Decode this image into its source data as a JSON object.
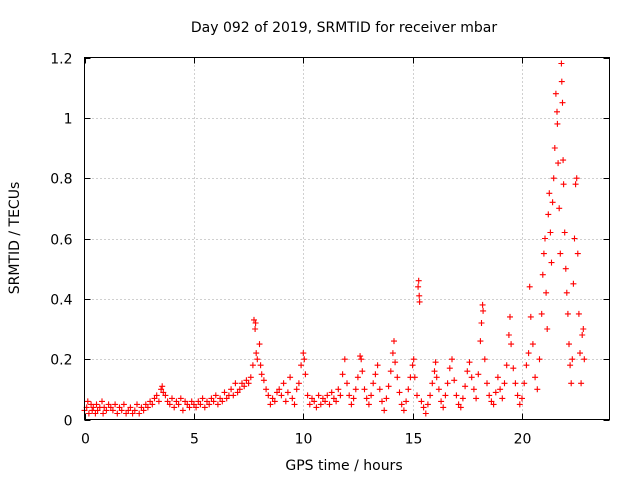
{
  "chart_data": {
    "type": "scatter",
    "title": "Day 092 of 2019, SRMTID for receiver mbar",
    "xlabel": "GPS time / hours",
    "ylabel": "SRMTID / TECUs",
    "xlim": [
      0,
      24
    ],
    "ylim": [
      0,
      1.2
    ],
    "x_ticks": [
      0,
      5,
      10,
      15,
      20
    ],
    "x_tick_labels": [
      "0",
      "5",
      "10",
      "15",
      "20"
    ],
    "y_ticks": [
      0,
      0.2,
      0.4,
      0.6,
      0.8,
      1.0,
      1.2
    ],
    "y_tick_labels": [
      "0",
      "0.2",
      "0.4",
      "0.6",
      "0.8",
      "1",
      "1.2"
    ],
    "grid": true,
    "marker": "plus",
    "series": [
      {
        "name": "SRMTID",
        "color": "#ff0000",
        "points": [
          [
            0.0,
            0.03
          ],
          [
            0.1,
            0.04
          ],
          [
            0.15,
            0.06
          ],
          [
            0.2,
            0.02
          ],
          [
            0.3,
            0.05
          ],
          [
            0.35,
            0.03
          ],
          [
            0.4,
            0.04
          ],
          [
            0.5,
            0.02
          ],
          [
            0.55,
            0.05
          ],
          [
            0.6,
            0.03
          ],
          [
            0.7,
            0.04
          ],
          [
            0.8,
            0.06
          ],
          [
            0.85,
            0.02
          ],
          [
            0.9,
            0.04
          ],
          [
            1.0,
            0.03
          ],
          [
            1.1,
            0.05
          ],
          [
            1.2,
            0.04
          ],
          [
            1.3,
            0.03
          ],
          [
            1.4,
            0.05
          ],
          [
            1.5,
            0.02
          ],
          [
            1.6,
            0.04
          ],
          [
            1.7,
            0.03
          ],
          [
            1.8,
            0.05
          ],
          [
            1.9,
            0.02
          ],
          [
            2.0,
            0.03
          ],
          [
            2.1,
            0.04
          ],
          [
            2.2,
            0.02
          ],
          [
            2.3,
            0.03
          ],
          [
            2.4,
            0.05
          ],
          [
            2.5,
            0.02
          ],
          [
            2.6,
            0.04
          ],
          [
            2.7,
            0.03
          ],
          [
            2.8,
            0.05
          ],
          [
            2.9,
            0.04
          ],
          [
            3.0,
            0.06
          ],
          [
            3.1,
            0.05
          ],
          [
            3.2,
            0.07
          ],
          [
            3.3,
            0.08
          ],
          [
            3.4,
            0.06
          ],
          [
            3.5,
            0.1
          ],
          [
            3.55,
            0.11
          ],
          [
            3.6,
            0.09
          ],
          [
            3.7,
            0.08
          ],
          [
            3.8,
            0.06
          ],
          [
            3.9,
            0.05
          ],
          [
            4.0,
            0.07
          ],
          [
            4.1,
            0.04
          ],
          [
            4.2,
            0.06
          ],
          [
            4.3,
            0.05
          ],
          [
            4.4,
            0.07
          ],
          [
            4.5,
            0.03
          ],
          [
            4.6,
            0.06
          ],
          [
            4.7,
            0.05
          ],
          [
            4.8,
            0.04
          ],
          [
            4.9,
            0.06
          ],
          [
            5.0,
            0.05
          ],
          [
            5.1,
            0.04
          ],
          [
            5.2,
            0.06
          ],
          [
            5.3,
            0.05
          ],
          [
            5.4,
            0.07
          ],
          [
            5.5,
            0.04
          ],
          [
            5.6,
            0.06
          ],
          [
            5.7,
            0.05
          ],
          [
            5.8,
            0.07
          ],
          [
            5.9,
            0.06
          ],
          [
            6.0,
            0.08
          ],
          [
            6.1,
            0.05
          ],
          [
            6.2,
            0.07
          ],
          [
            6.3,
            0.06
          ],
          [
            6.4,
            0.09
          ],
          [
            6.5,
            0.07
          ],
          [
            6.6,
            0.08
          ],
          [
            6.7,
            0.1
          ],
          [
            6.8,
            0.08
          ],
          [
            6.9,
            0.12
          ],
          [
            7.0,
            0.09
          ],
          [
            7.1,
            0.1
          ],
          [
            7.2,
            0.12
          ],
          [
            7.3,
            0.11
          ],
          [
            7.4,
            0.13
          ],
          [
            7.5,
            0.12
          ],
          [
            7.6,
            0.14
          ],
          [
            7.7,
            0.18
          ],
          [
            7.75,
            0.33
          ],
          [
            7.8,
            0.3
          ],
          [
            7.82,
            0.32
          ],
          [
            7.85,
            0.22
          ],
          [
            7.9,
            0.2
          ],
          [
            8.0,
            0.25
          ],
          [
            8.05,
            0.18
          ],
          [
            8.1,
            0.15
          ],
          [
            8.2,
            0.13
          ],
          [
            8.3,
            0.1
          ],
          [
            8.4,
            0.08
          ],
          [
            8.5,
            0.05
          ],
          [
            8.6,
            0.07
          ],
          [
            8.7,
            0.06
          ],
          [
            8.8,
            0.09
          ],
          [
            8.9,
            0.1
          ],
          [
            9.0,
            0.08
          ],
          [
            9.1,
            0.12
          ],
          [
            9.2,
            0.06
          ],
          [
            9.3,
            0.09
          ],
          [
            9.4,
            0.14
          ],
          [
            9.5,
            0.07
          ],
          [
            9.6,
            0.05
          ],
          [
            9.7,
            0.1
          ],
          [
            9.8,
            0.12
          ],
          [
            9.9,
            0.18
          ],
          [
            10.0,
            0.22
          ],
          [
            10.05,
            0.2
          ],
          [
            10.1,
            0.15
          ],
          [
            10.2,
            0.08
          ],
          [
            10.3,
            0.05
          ],
          [
            10.4,
            0.07
          ],
          [
            10.5,
            0.06
          ],
          [
            10.6,
            0.04
          ],
          [
            10.7,
            0.08
          ],
          [
            10.8,
            0.05
          ],
          [
            10.9,
            0.07
          ],
          [
            11.0,
            0.06
          ],
          [
            11.1,
            0.08
          ],
          [
            11.2,
            0.05
          ],
          [
            11.3,
            0.09
          ],
          [
            11.4,
            0.07
          ],
          [
            11.5,
            0.06
          ],
          [
            11.6,
            0.1
          ],
          [
            11.7,
            0.08
          ],
          [
            11.8,
            0.15
          ],
          [
            11.9,
            0.2
          ],
          [
            12.0,
            0.12
          ],
          [
            12.1,
            0.08
          ],
          [
            12.2,
            0.05
          ],
          [
            12.3,
            0.07
          ],
          [
            12.4,
            0.1
          ],
          [
            12.5,
            0.14
          ],
          [
            12.6,
            0.21
          ],
          [
            12.65,
            0.2
          ],
          [
            12.7,
            0.16
          ],
          [
            12.8,
            0.1
          ],
          [
            12.9,
            0.07
          ],
          [
            13.0,
            0.05
          ],
          [
            13.1,
            0.08
          ],
          [
            13.2,
            0.12
          ],
          [
            13.3,
            0.15
          ],
          [
            13.4,
            0.18
          ],
          [
            13.5,
            0.1
          ],
          [
            13.6,
            0.06
          ],
          [
            13.7,
            0.03
          ],
          [
            13.8,
            0.07
          ],
          [
            13.9,
            0.11
          ],
          [
            14.0,
            0.16
          ],
          [
            14.1,
            0.22
          ],
          [
            14.15,
            0.26
          ],
          [
            14.2,
            0.19
          ],
          [
            14.3,
            0.14
          ],
          [
            14.4,
            0.09
          ],
          [
            14.5,
            0.05
          ],
          [
            14.6,
            0.03
          ],
          [
            14.7,
            0.06
          ],
          [
            14.8,
            0.1
          ],
          [
            14.9,
            0.14
          ],
          [
            15.0,
            0.18
          ],
          [
            15.05,
            0.2
          ],
          [
            15.1,
            0.14
          ],
          [
            15.2,
            0.08
          ],
          [
            15.25,
            0.44
          ],
          [
            15.28,
            0.46
          ],
          [
            15.3,
            0.41
          ],
          [
            15.32,
            0.39
          ],
          [
            15.4,
            0.06
          ],
          [
            15.5,
            0.04
          ],
          [
            15.6,
            0.02
          ],
          [
            15.7,
            0.05
          ],
          [
            15.8,
            0.08
          ],
          [
            15.9,
            0.12
          ],
          [
            16.0,
            0.16
          ],
          [
            16.05,
            0.19
          ],
          [
            16.1,
            0.14
          ],
          [
            16.2,
            0.1
          ],
          [
            16.3,
            0.06
          ],
          [
            16.4,
            0.04
          ],
          [
            16.5,
            0.08
          ],
          [
            16.6,
            0.12
          ],
          [
            16.7,
            0.17
          ],
          [
            16.8,
            0.2
          ],
          [
            16.9,
            0.13
          ],
          [
            17.0,
            0.08
          ],
          [
            17.1,
            0.05
          ],
          [
            17.2,
            0.04
          ],
          [
            17.3,
            0.07
          ],
          [
            17.4,
            0.11
          ],
          [
            17.5,
            0.16
          ],
          [
            17.6,
            0.19
          ],
          [
            17.7,
            0.14
          ],
          [
            17.8,
            0.1
          ],
          [
            17.9,
            0.07
          ],
          [
            18.0,
            0.15
          ],
          [
            18.1,
            0.26
          ],
          [
            18.15,
            0.32
          ],
          [
            18.2,
            0.38
          ],
          [
            18.22,
            0.36
          ],
          [
            18.3,
            0.2
          ],
          [
            18.4,
            0.12
          ],
          [
            18.5,
            0.08
          ],
          [
            18.6,
            0.06
          ],
          [
            18.7,
            0.05
          ],
          [
            18.8,
            0.09
          ],
          [
            18.9,
            0.14
          ],
          [
            19.0,
            0.1
          ],
          [
            19.1,
            0.07
          ],
          [
            19.2,
            0.12
          ],
          [
            19.3,
            0.18
          ],
          [
            19.4,
            0.28
          ],
          [
            19.45,
            0.34
          ],
          [
            19.5,
            0.25
          ],
          [
            19.6,
            0.17
          ],
          [
            19.7,
            0.12
          ],
          [
            19.8,
            0.08
          ],
          [
            19.9,
            0.05
          ],
          [
            20.0,
            0.07
          ],
          [
            20.1,
            0.12
          ],
          [
            20.2,
            0.18
          ],
          [
            20.3,
            0.22
          ],
          [
            20.35,
            0.44
          ],
          [
            20.4,
            0.34
          ],
          [
            20.5,
            0.25
          ],
          [
            20.6,
            0.14
          ],
          [
            20.7,
            0.1
          ],
          [
            20.8,
            0.2
          ],
          [
            20.9,
            0.35
          ],
          [
            20.95,
            0.48
          ],
          [
            21.0,
            0.55
          ],
          [
            21.05,
            0.6
          ],
          [
            21.1,
            0.42
          ],
          [
            21.15,
            0.3
          ],
          [
            21.2,
            0.68
          ],
          [
            21.25,
            0.75
          ],
          [
            21.3,
            0.62
          ],
          [
            21.35,
            0.52
          ],
          [
            21.4,
            0.72
          ],
          [
            21.45,
            0.8
          ],
          [
            21.5,
            0.9
          ],
          [
            21.55,
            1.08
          ],
          [
            21.6,
            1.02
          ],
          [
            21.62,
            0.98
          ],
          [
            21.65,
            0.85
          ],
          [
            21.7,
            0.7
          ],
          [
            21.75,
            0.55
          ],
          [
            21.8,
            1.18
          ],
          [
            21.82,
            1.12
          ],
          [
            21.85,
            1.05
          ],
          [
            21.88,
            0.86
          ],
          [
            21.9,
            0.78
          ],
          [
            21.95,
            0.62
          ],
          [
            22.0,
            0.5
          ],
          [
            22.05,
            0.42
          ],
          [
            22.1,
            0.35
          ],
          [
            22.15,
            0.25
          ],
          [
            22.2,
            0.18
          ],
          [
            22.25,
            0.12
          ],
          [
            22.3,
            0.2
          ],
          [
            22.35,
            0.45
          ],
          [
            22.4,
            0.6
          ],
          [
            22.45,
            0.78
          ],
          [
            22.5,
            0.8
          ],
          [
            22.55,
            0.55
          ],
          [
            22.6,
            0.35
          ],
          [
            22.65,
            0.22
          ],
          [
            22.7,
            0.12
          ],
          [
            22.75,
            0.28
          ],
          [
            22.8,
            0.3
          ],
          [
            22.85,
            0.2
          ]
        ]
      }
    ]
  }
}
